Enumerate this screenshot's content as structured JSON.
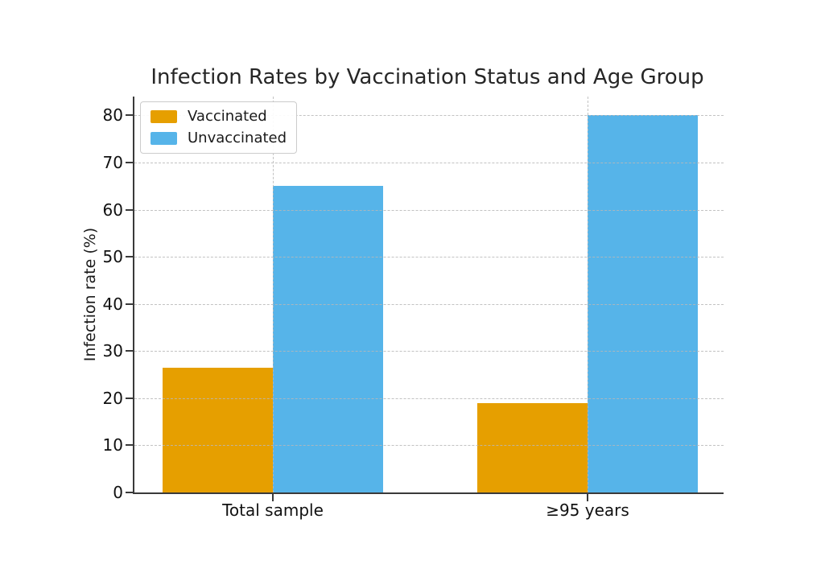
{
  "chart_data": {
    "type": "bar",
    "title": "Infection Rates by Vaccination Status and Age Group",
    "xlabel": "",
    "ylabel": "Infection rate (%)",
    "categories": [
      "Total sample",
      "≥95 years"
    ],
    "series": [
      {
        "name": "Vaccinated",
        "color": "#E69F00",
        "values": [
          26.5,
          19
        ]
      },
      {
        "name": "Unvaccinated",
        "color": "#56B4E9",
        "values": [
          65,
          80
        ]
      }
    ],
    "ylim": [
      0,
      84
    ],
    "yticks": [
      0,
      10,
      20,
      30,
      40,
      50,
      60,
      70,
      80
    ],
    "grid": true,
    "grid_style": "dashed",
    "legend_position": "upper-left",
    "background": "#ffffff",
    "spine_color": "#3a3a3a",
    "grid_color": "#c9c9c9",
    "text_color": "#1a1a1a"
  }
}
